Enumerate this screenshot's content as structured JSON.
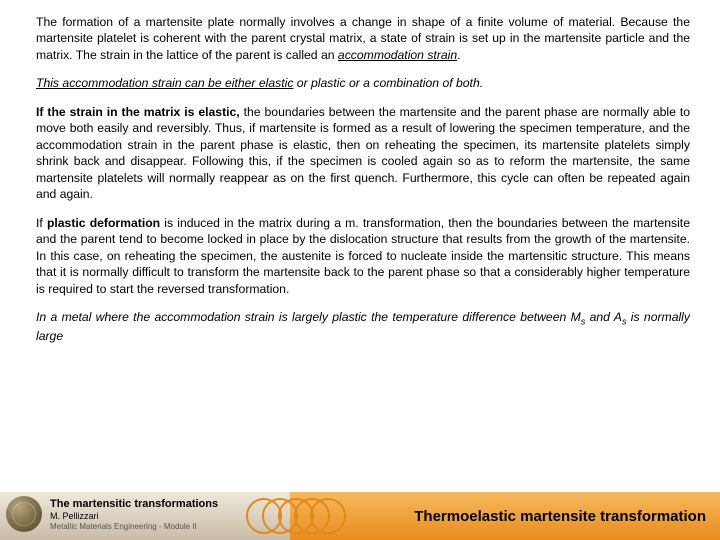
{
  "p1_a": "The formation of a martensite plate normally involves a change in shape of a finite volume of material. Because the martensite platelet is coherent with the parent crystal matrix, a state of strain is set up in the martensite particle and the matrix. The strain in the lattice of the parent is called an ",
  "p1_b": "accommodation strain",
  "p1_c": ".",
  "p2_a": "This accommodation strain can be either elastic",
  "p2_b": " or plastic or a combination of both.",
  "p3_a": "If the strain in the matrix is elastic,",
  "p3_b": " the boundaries between the martensite and the parent phase are normally able to move both easily and reversibly. Thus, if martensite is formed as a result of lowering the specimen temperature, and the accommodation strain in the parent phase is elastic, then on reheating the specimen, its martensite platelets simply shrink back and disappear. Following this, if the specimen is cooled again so as to reform the martensite, the same martensite platelets will normally reappear as on the first quench. Furthermore, this cycle can often be repeated again and again.",
  "p4_a": "If ",
  "p4_b": "plastic deformation",
  "p4_c": " is induced in the matrix during a m. transformation, then the boundaries between the martensite and the parent tend to become locked in place by the dislocation structure that results from the growth of the martensite. In this case, on reheating the specimen, the austenite is forced to nucleate inside the martensitic structure. This means that it is normally difficult to transform the martensite back to the parent phase so that a considerably higher temperature is required to start the reversed transformation.",
  "p5_a": "In a metal where the accommodation strain is largely plastic the temperature difference between M",
  "p5_s": "s",
  "p5_b": " and A",
  "p5_s2": "s",
  "p5_c": " is normally large",
  "footer": {
    "left_title": "The martensitic transformations",
    "author": "M. Pellizzari",
    "subline": "Metallic Materials Engineering - Module II",
    "right_title": "Thermoelastic martensite transformation"
  },
  "colors": {
    "footer_left_grad_top": "#efe8da",
    "footer_left_grad_bot": "#c9bba7",
    "footer_right_grad_top": "#f6b95f",
    "footer_right_grad_bot": "#e98c1a",
    "ring_border": "#e08a1a"
  }
}
